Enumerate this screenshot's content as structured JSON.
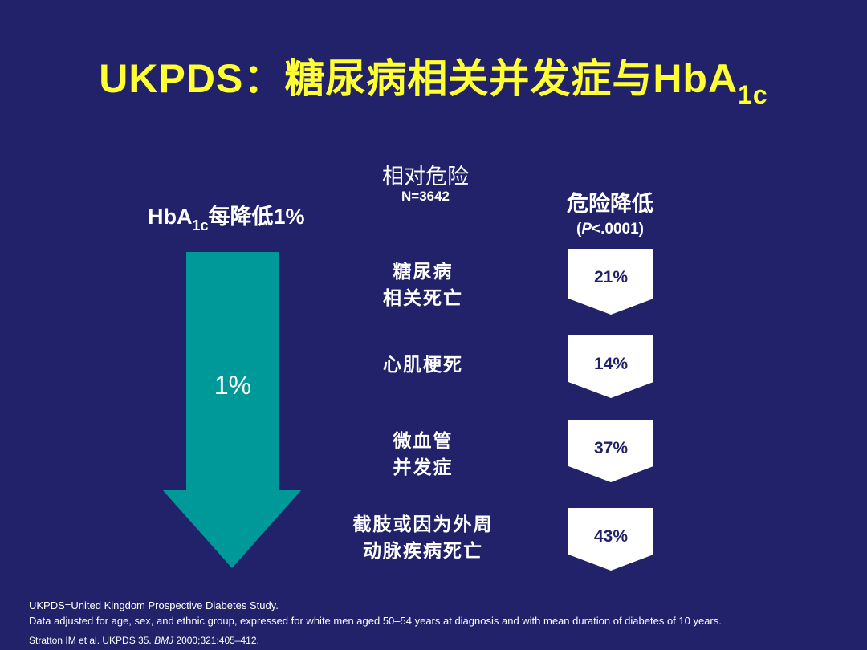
{
  "title": {
    "main": "UKPDS：糖尿病相关并发症与HbA",
    "sub": "1c"
  },
  "left_label": {
    "pre": "HbA",
    "sub": "1c",
    "post": "每降低1%"
  },
  "arrow_text": "1%",
  "column_header": {
    "title": "相对危险",
    "n": "N=3642"
  },
  "risk_header": {
    "title": "危险降低",
    "p_open": "(",
    "p_italic": "P",
    "p_rest": "<.0001)"
  },
  "outcomes": [
    {
      "line1": "糖尿病",
      "line2": "相关死亡",
      "value": "21%"
    },
    {
      "line1": "心肌梗死",
      "line2": "",
      "value": "14%"
    },
    {
      "line1": "微血管",
      "line2": "并发症",
      "value": "37%"
    },
    {
      "line1": "截肢或因为外周",
      "line2": "动脉疾病死亡",
      "value": "43%"
    }
  ],
  "footer": {
    "line1": "UKPDS=United Kingdom Prospective Diabetes Study.",
    "line2": "Data adjusted for age, sex, and ethnic group, expressed for white men aged 50–54 years at diagnosis and with mean duration of diabetes of 10 years.",
    "ref_pre": "Stratton IM et al. UKPDS 35. ",
    "ref_journal": "BMJ",
    "ref_post": " 2000;321:405–412."
  },
  "colors": {
    "background": "#21226a",
    "title": "#ffff33",
    "arrow": "#009999",
    "badge": "#ffffff"
  }
}
